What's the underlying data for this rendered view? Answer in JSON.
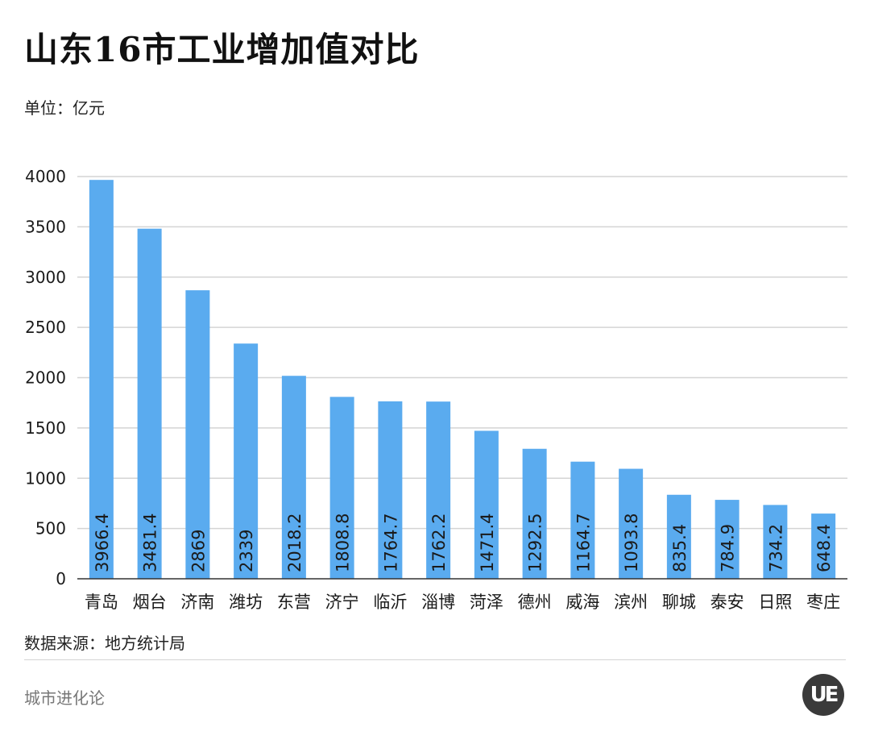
{
  "header": {
    "title": "山东16市工业增加值对比",
    "unit": "单位：亿元"
  },
  "footer": {
    "source": "数据来源：地方统计局",
    "brand": "城市进化论",
    "logo_text": "UE"
  },
  "colors": {
    "bar": "#5aabef",
    "grid": "#d4d4d4",
    "axis": "#333333",
    "label": "#1a1a1a"
  },
  "chart_data": {
    "type": "bar",
    "categories": [
      "青岛",
      "烟台",
      "济南",
      "潍坊",
      "东营",
      "济宁",
      "临沂",
      "淄博",
      "菏泽",
      "德州",
      "威海",
      "滨州",
      "聊城",
      "泰安",
      "日照",
      "枣庄"
    ],
    "values": [
      3966.4,
      3481.4,
      2869,
      2339,
      2018.2,
      1808.8,
      1764.7,
      1762.2,
      1471.4,
      1292.5,
      1164.7,
      1093.8,
      835.4,
      784.9,
      734.2,
      648.4
    ],
    "value_labels": [
      "3966.4",
      "3481.4",
      "2869",
      "2339",
      "2018.2",
      "1808.8",
      "1764.7",
      "1762.2",
      "1471.4",
      "1292.5",
      "1164.7",
      "1093.8",
      "835.4",
      "784.9",
      "734.2",
      "648.4"
    ],
    "y_ticks": [
      "0",
      "500",
      "1000",
      "1500",
      "2000",
      "2500",
      "3000",
      "3500",
      "4000"
    ],
    "ylim": [
      0,
      4000
    ],
    "grid": true
  }
}
